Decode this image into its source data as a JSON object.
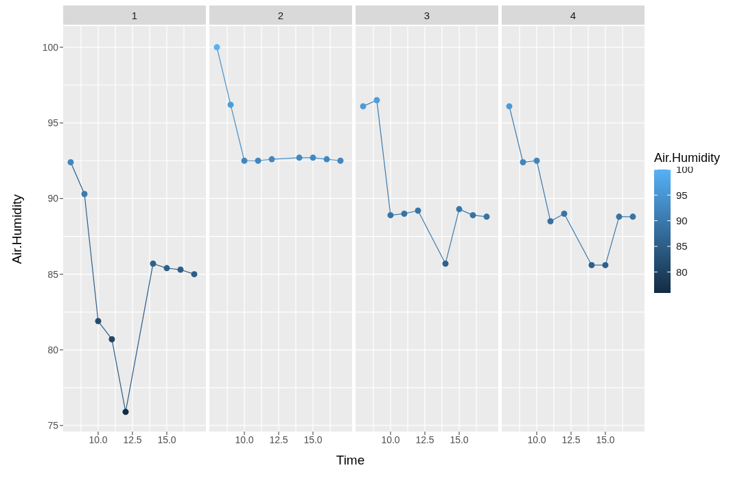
{
  "chart_data": [
    {
      "type": "line",
      "title": "1",
      "ylabel": "Air.Humidity",
      "x": [
        8,
        9,
        10,
        11,
        12,
        14,
        15,
        16,
        17
      ],
      "values": [
        92.4,
        90.3,
        81.9,
        80.7,
        75.9,
        85.7,
        85.4,
        85.3,
        85.0
      ],
      "xlim": [
        7.45,
        17.85
      ],
      "xticks": [
        {
          "value": 10,
          "label": "10.0"
        },
        {
          "value": 12.5,
          "label": "12.5"
        },
        {
          "value": 15,
          "label": "15.0"
        }
      ],
      "ylim": [
        74.6,
        101.4
      ],
      "yticks": [
        75,
        80,
        85,
        90,
        95,
        100
      ],
      "grid": true,
      "marker": "circle"
    },
    {
      "type": "line",
      "title": "2",
      "xlabel": "Time",
      "x": [
        8,
        9,
        10,
        11,
        12,
        14,
        15,
        16,
        17
      ],
      "values": [
        100,
        96.2,
        92.5,
        92.5,
        92.6,
        92.7,
        92.7,
        92.6,
        92.5
      ],
      "xlim": [
        7.45,
        17.85
      ],
      "xticks": [
        {
          "value": 10,
          "label": "10.0"
        },
        {
          "value": 12.5,
          "label": "12.5"
        },
        {
          "value": 15,
          "label": "15.0"
        }
      ],
      "ylim": [
        74.6,
        101.4
      ],
      "yticks": [
        75,
        80,
        85,
        90,
        95,
        100
      ],
      "tick_labels": "x",
      "grid": true,
      "marker": "circle"
    },
    {
      "type": "line",
      "title": "3",
      "x": [
        8,
        9,
        10,
        11,
        12,
        14,
        15,
        16,
        17
      ],
      "values": [
        96.1,
        96.5,
        88.9,
        89.0,
        89.2,
        85.7,
        89.3,
        88.9,
        88.8
      ],
      "xlim": [
        7.45,
        17.85
      ],
      "xticks": [
        {
          "value": 10,
          "label": "10.0"
        },
        {
          "value": 12.5,
          "label": "12.5"
        },
        {
          "value": 15,
          "label": "15.0"
        }
      ],
      "ylim": [
        74.6,
        101.4
      ],
      "yticks": [
        75,
        80,
        85,
        90,
        95,
        100
      ],
      "tick_labels": "x",
      "grid": true,
      "marker": "circle"
    },
    {
      "type": "line",
      "title": "4",
      "x": [
        8,
        9,
        10,
        11,
        12,
        14,
        15,
        16,
        17
      ],
      "values": [
        96.1,
        92.4,
        92.5,
        88.5,
        89.0,
        85.6,
        85.6,
        88.8,
        88.8
      ],
      "xlim": [
        7.45,
        17.85
      ],
      "xticks": [
        {
          "value": 10,
          "label": "10.0"
        },
        {
          "value": 12.5,
          "label": "12.5"
        },
        {
          "value": 15,
          "label": "15.0"
        }
      ],
      "ylim": [
        74.6,
        101.4
      ],
      "yticks": [
        75,
        80,
        85,
        90,
        95,
        100
      ],
      "tick_labels": "x",
      "grid": true,
      "marker": "circle",
      "clabel": "Air.Humidity",
      "clim": [
        75.9,
        100
      ],
      "cticks": [
        80,
        85,
        90,
        95,
        100
      ]
    }
  ]
}
